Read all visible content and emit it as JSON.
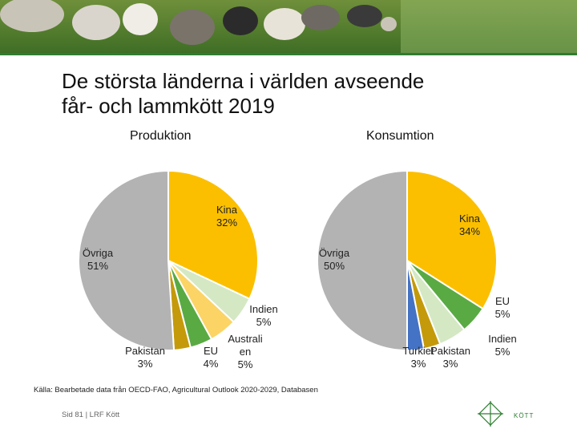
{
  "slide": {
    "title_line1": "De största länderna i världen avseende",
    "title_line2": "får- och lammkött 2019",
    "source": "Källa: Bearbetade data från OECD-FAO, Agricultural Outlook 2020-2029, Databasen",
    "footer": "Sid 81 | LRF Kött",
    "logo_text": "KÖTT"
  },
  "colors": {
    "Kina": "#fbbf00",
    "Indien": "#d4e8c4",
    "Australien": "#fbd465",
    "EU": "#5aaa43",
    "Pakistan": "#c49a0a",
    "Turkiet": "#4472c4",
    "Övriga": "#b3b3b3",
    "brand_green": "#2e7d32"
  },
  "chart_data": [
    {
      "type": "pie",
      "title": "Produktion",
      "slices": [
        {
          "label": "Kina",
          "value": 32,
          "text": "32%"
        },
        {
          "label": "Indien",
          "value": 5,
          "text": "5%"
        },
        {
          "label": "Australien",
          "display": "Australi\nen",
          "value": 5,
          "text": "5%"
        },
        {
          "label": "EU",
          "value": 4,
          "text": "4%"
        },
        {
          "label": "Pakistan",
          "value": 3,
          "text": "3%"
        },
        {
          "label": "Övriga",
          "value": 51,
          "text": "51%"
        }
      ]
    },
    {
      "type": "pie",
      "title": "Konsumtion",
      "slices": [
        {
          "label": "Kina",
          "value": 34,
          "text": "34%"
        },
        {
          "label": "EU",
          "value": 5,
          "text": "5%"
        },
        {
          "label": "Indien",
          "value": 5,
          "text": "5%"
        },
        {
          "label": "Pakistan",
          "value": 3,
          "text": "3%"
        },
        {
          "label": "Turkiet",
          "value": 3,
          "text": "3%"
        },
        {
          "label": "Övriga",
          "value": 50,
          "text": "50%"
        }
      ]
    }
  ]
}
